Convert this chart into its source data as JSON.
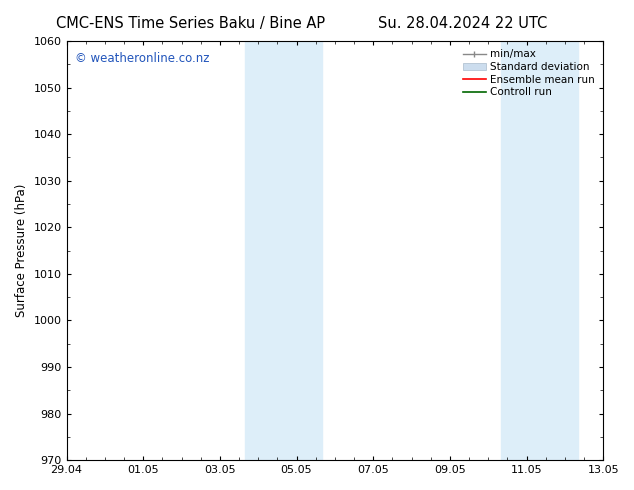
{
  "title_left": "CMC-ENS Time Series Baku / Bine AP",
  "title_right": "Su. 28.04.2024 22 UTC",
  "ylabel": "Surface Pressure (hPa)",
  "ylim": [
    970,
    1060
  ],
  "yticks": [
    970,
    980,
    990,
    1000,
    1010,
    1020,
    1030,
    1040,
    1050,
    1060
  ],
  "xlim": [
    0,
    14
  ],
  "xtick_labels": [
    "29.04",
    "01.05",
    "03.05",
    "05.05",
    "07.05",
    "09.05",
    "11.05",
    "13.05"
  ],
  "xtick_positions": [
    0,
    2,
    4,
    6,
    8,
    10,
    12,
    14
  ],
  "shaded_regions": [
    {
      "x_start": 4.667,
      "x_end": 5.333,
      "color": "#ddeef9"
    },
    {
      "x_start": 5.333,
      "x_end": 6.667,
      "color": "#ddeef9"
    },
    {
      "x_start": 11.333,
      "x_end": 12.0,
      "color": "#ddeef9"
    },
    {
      "x_start": 12.0,
      "x_end": 13.333,
      "color": "#ddeef9"
    }
  ],
  "watermark": "© weatheronline.co.nz",
  "watermark_color": "#2255bb",
  "background_color": "#ffffff",
  "axes_bg_color": "#ffffff",
  "title_fontsize": 10.5,
  "label_fontsize": 8.5,
  "tick_fontsize": 8,
  "legend_fontsize": 7.5,
  "spine_color": "#000000"
}
